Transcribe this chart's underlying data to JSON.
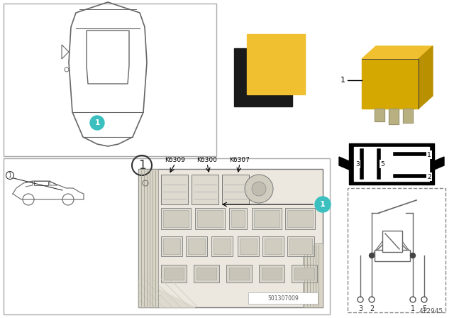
{
  "bg": "#ffffff",
  "title_number": "412945",
  "part_number_label": "501307009",
  "teal": "#3BBFBF",
  "yellow": "#F0C030",
  "black": "#1a1a1a",
  "gray_line": "#666666",
  "gray_fill": "#e8e4dc",
  "fuse_fill": "#dedad0",
  "relay_codes": [
    "K6309",
    "K6300",
    "K6307"
  ],
  "pin_labels_inner": [
    "3",
    "5",
    "1",
    "2"
  ],
  "schematic_pins": [
    "3",
    "2",
    "1",
    "5"
  ]
}
